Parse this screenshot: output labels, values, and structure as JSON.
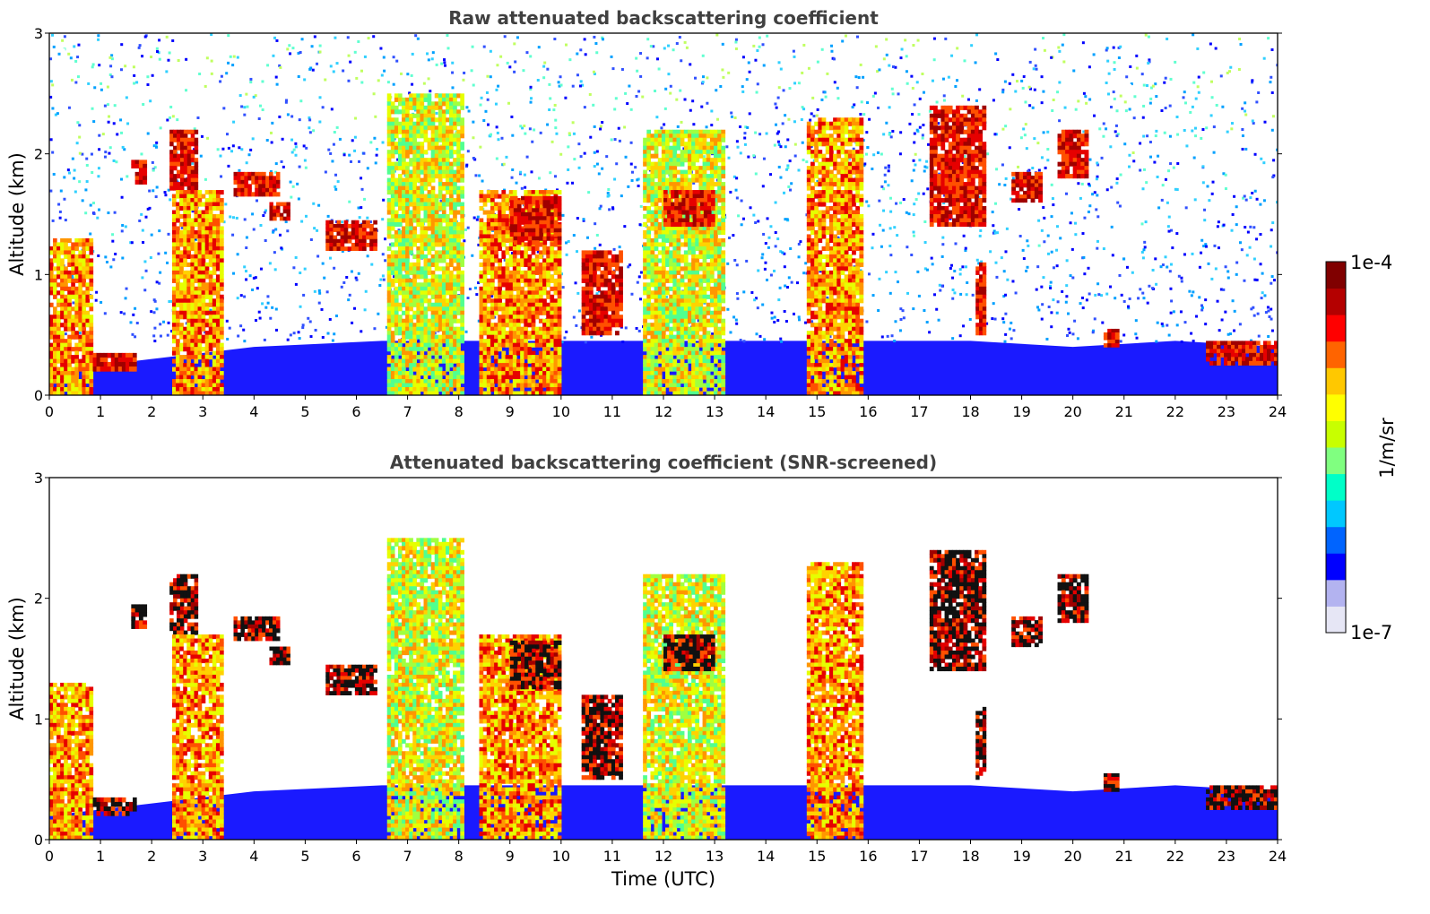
{
  "chart_data": [
    {
      "type": "heatmap",
      "title": "Raw attenuated backscattering coefficient",
      "xlabel": "",
      "ylabel": "Altitude (km)",
      "xlim": [
        0,
        24
      ],
      "ylim": [
        0,
        3
      ],
      "x_ticks": [
        0,
        1,
        2,
        3,
        4,
        5,
        6,
        7,
        8,
        9,
        10,
        11,
        12,
        13,
        14,
        15,
        16,
        17,
        18,
        19,
        20,
        21,
        22,
        23,
        24
      ],
      "y_ticks": [
        0,
        1,
        2,
        3
      ],
      "colorscale": "jet",
      "screened": false,
      "cloud_features": [
        {
          "t0": 0.0,
          "t1": 0.85,
          "z0": 0.0,
          "z1": 1.3,
          "level": "high"
        },
        {
          "t0": 0.85,
          "t1": 1.7,
          "z0": 0.2,
          "z1": 0.35,
          "level": "very_high"
        },
        {
          "t0": 1.6,
          "t1": 1.9,
          "z0": 1.75,
          "z1": 1.95,
          "level": "very_high"
        },
        {
          "t0": 2.35,
          "t1": 2.9,
          "z0": 1.7,
          "z1": 2.2,
          "level": "very_high"
        },
        {
          "t0": 2.4,
          "t1": 3.4,
          "z0": 0.0,
          "z1": 1.7,
          "level": "high"
        },
        {
          "t0": 3.6,
          "t1": 4.5,
          "z0": 1.65,
          "z1": 1.85,
          "level": "very_high"
        },
        {
          "t0": 4.3,
          "t1": 4.7,
          "z0": 1.45,
          "z1": 1.6,
          "level": "very_high"
        },
        {
          "t0": 5.4,
          "t1": 6.4,
          "z0": 1.2,
          "z1": 1.45,
          "level": "very_high"
        },
        {
          "t0": 6.6,
          "t1": 8.1,
          "z0": 0.0,
          "z1": 2.5,
          "level": "mid_high"
        },
        {
          "t0": 8.4,
          "t1": 10.0,
          "z0": 0.0,
          "z1": 1.7,
          "level": "high"
        },
        {
          "t0": 9.0,
          "t1": 10.0,
          "z0": 1.25,
          "z1": 1.65,
          "level": "very_high"
        },
        {
          "t0": 10.4,
          "t1": 11.2,
          "z0": 0.5,
          "z1": 1.2,
          "level": "very_high"
        },
        {
          "t0": 11.6,
          "t1": 13.2,
          "z0": 0.0,
          "z1": 2.2,
          "level": "mid_high"
        },
        {
          "t0": 12.0,
          "t1": 13.0,
          "z0": 1.4,
          "z1": 1.7,
          "level": "very_high"
        },
        {
          "t0": 14.8,
          "t1": 15.9,
          "z0": 0.0,
          "z1": 2.3,
          "level": "high"
        },
        {
          "t0": 17.2,
          "t1": 18.3,
          "z0": 1.4,
          "z1": 2.4,
          "level": "very_high"
        },
        {
          "t0": 18.1,
          "t1": 18.3,
          "z0": 0.5,
          "z1": 1.1,
          "level": "very_high"
        },
        {
          "t0": 18.8,
          "t1": 19.4,
          "z0": 1.6,
          "z1": 1.85,
          "level": "very_high"
        },
        {
          "t0": 19.7,
          "t1": 20.3,
          "z0": 1.8,
          "z1": 2.2,
          "level": "very_high"
        },
        {
          "t0": 20.6,
          "t1": 20.9,
          "z0": 0.4,
          "z1": 0.55,
          "level": "very_high"
        },
        {
          "t0": 22.6,
          "t1": 24.0,
          "z0": 0.25,
          "z1": 0.45,
          "level": "very_high"
        }
      ]
    },
    {
      "type": "heatmap",
      "title": "Attenuated backscattering coefficient (SNR-screened)",
      "xlabel": "Time (UTC)",
      "ylabel": "Altitude (km)",
      "xlim": [
        0,
        24
      ],
      "ylim": [
        0,
        3
      ],
      "x_ticks": [
        0,
        1,
        2,
        3,
        4,
        5,
        6,
        7,
        8,
        9,
        10,
        11,
        12,
        13,
        14,
        15,
        16,
        17,
        18,
        19,
        20,
        21,
        22,
        23,
        24
      ],
      "y_ticks": [
        0,
        1,
        2,
        3
      ],
      "colorscale": "jet",
      "screened": true
    }
  ],
  "colorbar": {
    "label": "1/m/sr",
    "max_label": "1e-4",
    "min_label": "1e-7",
    "colors": [
      "#e6e6f5",
      "#b3b3f0",
      "#0000ff",
      "#0064ff",
      "#00c8ff",
      "#00ffc8",
      "#80ff80",
      "#c8ff00",
      "#ffff00",
      "#ffc800",
      "#ff6400",
      "#ff0000",
      "#b40000",
      "#800000"
    ]
  }
}
